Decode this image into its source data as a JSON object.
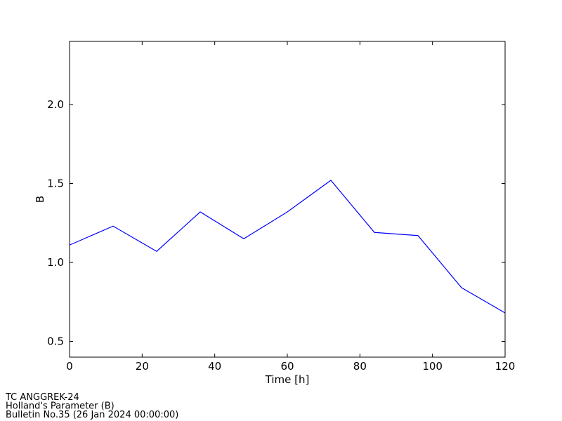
{
  "chart_data": {
    "type": "line",
    "x": [
      0,
      12,
      24,
      36,
      48,
      60,
      72,
      84,
      96,
      108,
      120
    ],
    "series": [
      {
        "name": "B",
        "color": "#0000ff",
        "values": [
          1.11,
          1.23,
          1.07,
          1.32,
          1.15,
          1.32,
          1.52,
          1.19,
          1.17,
          0.84,
          0.68
        ]
      }
    ],
    "xlim": [
      0,
      120
    ],
    "xticks": [
      0,
      20,
      40,
      60,
      80,
      100,
      120
    ],
    "ylim": [
      0.4,
      2.4
    ],
    "yticks": [
      0.5,
      {
        "value": 1.0,
        "label": "1.0"
      },
      1.5,
      {
        "value": 2.0,
        "label": "2.0"
      }
    ],
    "xlabel": "Time [h]",
    "ylabel": "B",
    "annotations": [
      "TC ANGGREK-24",
      "Holland's Parameter (B)",
      "Bulletin No.35 (26 Jan 2024  00:00:00)"
    ],
    "grid": false
  }
}
